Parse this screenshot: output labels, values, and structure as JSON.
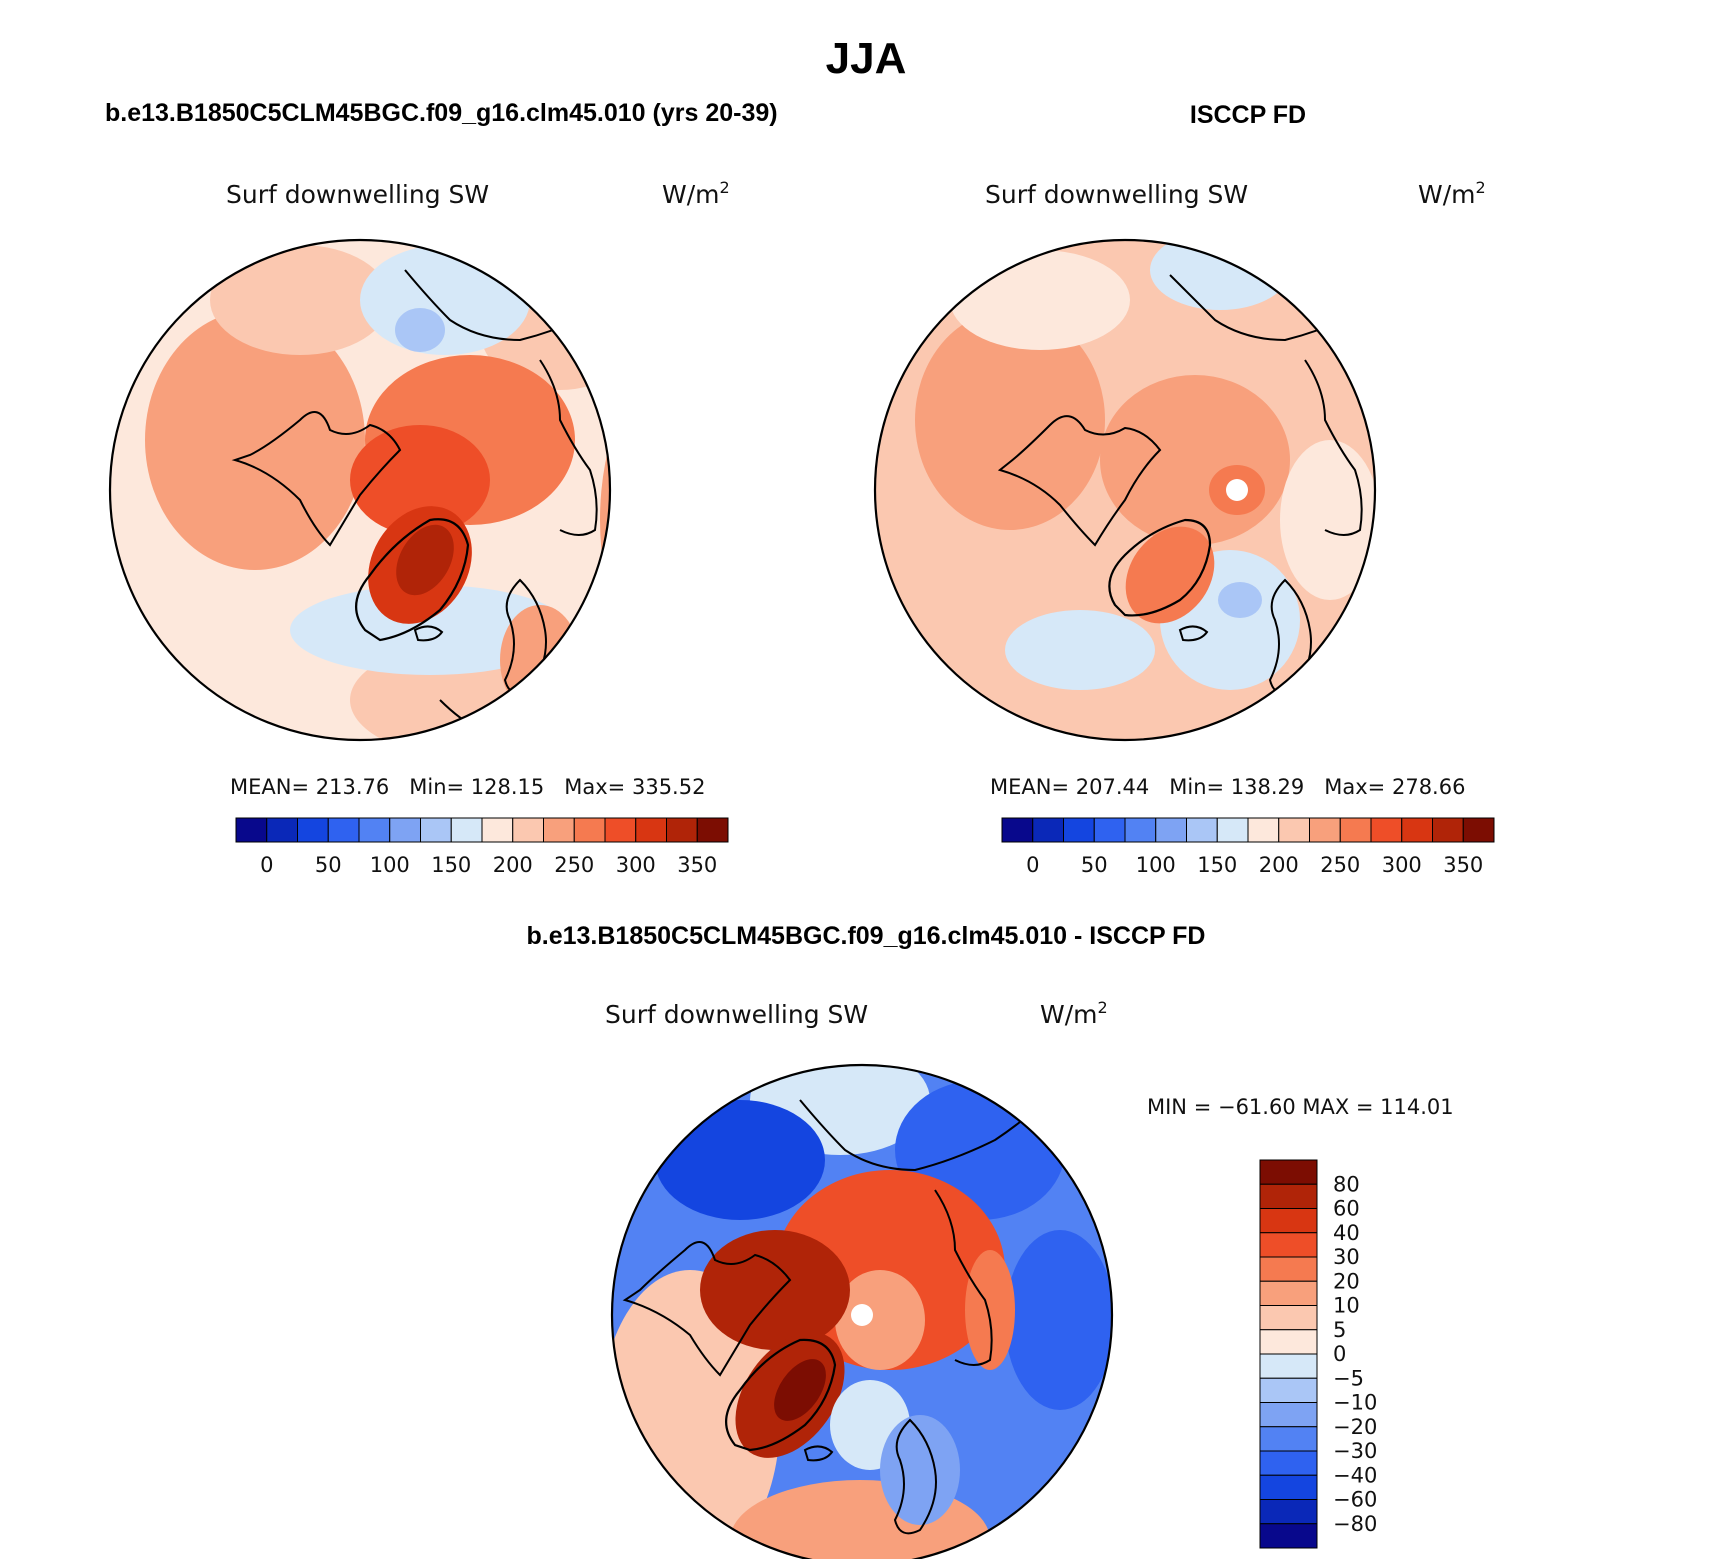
{
  "figure": {
    "season": "JJA",
    "model_title": "b.e13.B1850C5CLM45BGC.f09_g16.clm45.010 (yrs 20-39)",
    "obs_title": "ISCCP FD",
    "diff_title": "b.e13.B1850C5CLM45BGC.f09_g16.clm45.010 - ISCCP FD"
  },
  "panels": [
    {
      "id": "model",
      "variable": "Surf downwelling SW",
      "units_base": "W/m",
      "units_exp": "2",
      "stats": {
        "mean_label": "MEAN=",
        "mean": "213.76",
        "min_label": "Min=",
        "min": "128.15",
        "max_label": "Max=",
        "max": "335.52"
      },
      "colorbar": {
        "colors": [
          "#08088c",
          "#0a28b8",
          "#1445e0",
          "#2f62f0",
          "#5282f3",
          "#7ea3f3",
          "#aac6f6",
          "#d6e8f8",
          "#fde8dc",
          "#fbc8b0",
          "#f8a07c",
          "#f57a50",
          "#ee4e28",
          "#d83612",
          "#b02408",
          "#7c0d02"
        ],
        "labels": [
          "0",
          "50",
          "100",
          "150",
          "200",
          "250",
          "300",
          "350"
        ]
      }
    },
    {
      "id": "obs",
      "variable": "Surf downwelling SW",
      "units_base": "W/m",
      "units_exp": "2",
      "stats": {
        "mean_label": "MEAN=",
        "mean": "207.44",
        "min_label": "Min=",
        "min": "138.29",
        "max_label": "Max=",
        "max": "278.66"
      },
      "colorbar": {
        "colors": [
          "#08088c",
          "#0a28b8",
          "#1445e0",
          "#2f62f0",
          "#5282f3",
          "#7ea3f3",
          "#aac6f6",
          "#d6e8f8",
          "#fde8dc",
          "#fbc8b0",
          "#f8a07c",
          "#f57a50",
          "#ee4e28",
          "#d83612",
          "#b02408",
          "#7c0d02"
        ],
        "labels": [
          "0",
          "50",
          "100",
          "150",
          "200",
          "250",
          "300",
          "350"
        ]
      }
    },
    {
      "id": "diff",
      "variable": "Surf downwelling SW",
      "units_base": "W/m",
      "units_exp": "2",
      "stats_text": "MIN = −61.60 MAX = 114.01",
      "colorbar": {
        "colors": [
          "#7c0d02",
          "#b02408",
          "#d83612",
          "#ee4e28",
          "#f57a50",
          "#f8a07c",
          "#fbc8b0",
          "#fde8dc",
          "#d6e8f8",
          "#aac6f6",
          "#7ea3f3",
          "#5282f3",
          "#2f62f0",
          "#1445e0",
          "#0a28b8",
          "#08088c"
        ],
        "labels": [
          "80",
          "60",
          "40",
          "30",
          "20",
          "10",
          "5",
          "0",
          "−5",
          "−10",
          "−20",
          "−30",
          "−40",
          "−60",
          "−80"
        ]
      }
    }
  ],
  "colors": {
    "ocean_light_blue": "#d6e8f8",
    "pale_orange": "#fde8dc",
    "light_orange": "#fbc8b0",
    "orange": "#f8a07c",
    "strong_orange": "#f57a50",
    "red_orange": "#ee4e28",
    "dark_red": "#b02408",
    "blue_mid": "#5282f3",
    "blue_dark": "#1445e0"
  }
}
